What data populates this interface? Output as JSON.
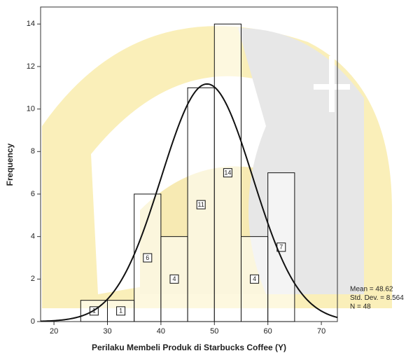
{
  "chart_data": {
    "type": "histogram",
    "x_label": "Perilaku Membeli Produk di Starbucks Coffee (Y)",
    "y_label": "Frequency",
    "bins": [
      25,
      30,
      35,
      40,
      45,
      50,
      55,
      60,
      65
    ],
    "values": [
      1,
      1,
      6,
      4,
      11,
      14,
      4,
      7
    ],
    "color": "#ffffff",
    "xlim": [
      17.5,
      73
    ],
    "xticks": [
      20,
      30,
      40,
      50,
      60,
      70
    ],
    "ylim": [
      0,
      14.8
    ],
    "yticks": [
      0,
      2,
      4,
      6,
      8,
      10,
      12,
      14
    ],
    "normal_curve": {
      "mean": 48.62,
      "std_dev": 8.564,
      "n": 48
    },
    "stats_labels": [
      "Mean = 48.62",
      "Std. Dev. = 8.564",
      "N = 48"
    ]
  }
}
